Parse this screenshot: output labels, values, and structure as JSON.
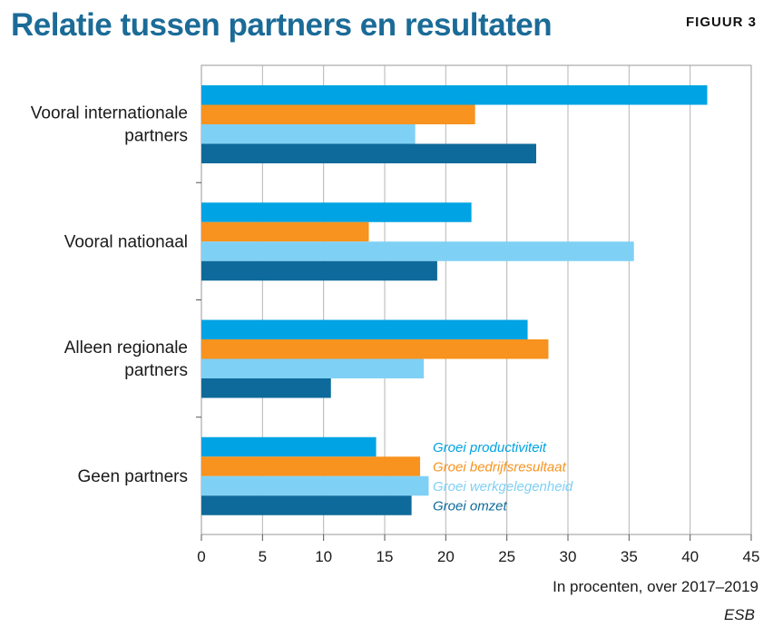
{
  "header": {
    "title": "Relatie tussen partners en resultaten",
    "figure_label": "FIGUUR 3"
  },
  "source": "ESB",
  "chart_data": {
    "type": "bar",
    "orientation": "horizontal",
    "categories": [
      [
        "Vooral internationale",
        "partners"
      ],
      [
        "Vooral nationaal"
      ],
      [
        "Alleen regionale",
        "partners"
      ],
      [
        "Geen partners"
      ]
    ],
    "series": [
      {
        "name": "Groei productiviteit",
        "color": "#00a3e3",
        "values": [
          41.4,
          22.1,
          26.7,
          14.3
        ]
      },
      {
        "name": "Groei bedrijfsresultaat",
        "color": "#f7931e",
        "values": [
          22.4,
          13.7,
          28.4,
          17.9
        ]
      },
      {
        "name": "Groei werkgelegenheid",
        "color": "#7fd0f5",
        "values": [
          17.5,
          35.4,
          18.2,
          18.6
        ]
      },
      {
        "name": "Groei omzet",
        "color": "#0e6a9a",
        "values": [
          27.4,
          19.3,
          10.6,
          17.2
        ]
      }
    ],
    "xlim": [
      0,
      45
    ],
    "xticks": [
      0,
      5,
      10,
      15,
      20,
      25,
      30,
      35,
      40,
      45
    ],
    "xlabel": "In procenten, over 2017–2019",
    "ylabel": "",
    "grid": "vertical",
    "legend_placement": "inside, next to bottom group"
  }
}
